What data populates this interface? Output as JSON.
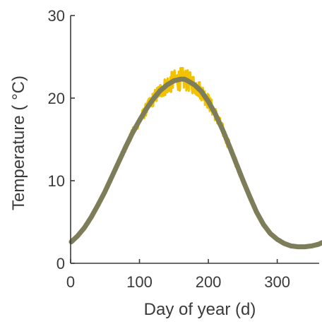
{
  "chart_data": {
    "type": "line",
    "title": "",
    "xlabel": "Day of year (d)",
    "ylabel": "Temperature ( °C)",
    "xlim": [
      0,
      365
    ],
    "ylim": [
      0,
      30
    ],
    "xticks": [
      0,
      100,
      200,
      300
    ],
    "yticks": [
      0,
      10,
      20,
      30
    ],
    "grid": false,
    "legend": "none",
    "series": [
      {
        "style": "noisy-band",
        "color": "#f2c200",
        "x": [
          1,
          10,
          20,
          30,
          40,
          50,
          60,
          70,
          80,
          90,
          100,
          110,
          120,
          130,
          140,
          150,
          160,
          165,
          170,
          180,
          190,
          200,
          210,
          220,
          230,
          240,
          250,
          260,
          270,
          280,
          290,
          300,
          310,
          320,
          330,
          340,
          350,
          360,
          365
        ],
        "y": [
          2.6,
          3.3,
          4.3,
          5.6,
          7.1,
          8.7,
          10.5,
          12.3,
          14.1,
          15.8,
          17.3,
          18.7,
          19.9,
          20.9,
          21.6,
          22.1,
          22.3,
          22.3,
          22.1,
          21.6,
          20.8,
          19.6,
          18.1,
          16.3,
          14.3,
          12.2,
          10.1,
          8.1,
          6.2,
          4.7,
          3.6,
          2.9,
          2.4,
          2.1,
          2.0,
          2.0,
          2.1,
          2.3,
          2.5
        ],
        "noise_amplitude": [
          0.2,
          0.2,
          0.2,
          0.3,
          0.3,
          0.4,
          0.4,
          0.5,
          0.5,
          0.6,
          0.7,
          0.8,
          0.9,
          1.0,
          1.2,
          1.3,
          1.4,
          1.4,
          1.3,
          1.2,
          1.1,
          1.0,
          0.9,
          0.8,
          0.7,
          0.6,
          0.5,
          0.4,
          0.3,
          0.3,
          0.2,
          0.2,
          0.2,
          0.2,
          0.1,
          0.1,
          0.1,
          0.1,
          0.1
        ]
      },
      {
        "style": "smooth-line",
        "color": "#7d7d5a",
        "x": [
          1,
          10,
          20,
          30,
          40,
          50,
          60,
          70,
          80,
          90,
          100,
          110,
          120,
          130,
          140,
          150,
          160,
          165,
          170,
          180,
          190,
          200,
          210,
          220,
          230,
          240,
          250,
          260,
          270,
          280,
          290,
          300,
          310,
          320,
          330,
          340,
          350,
          360,
          365
        ],
        "y": [
          2.6,
          3.3,
          4.3,
          5.6,
          7.1,
          8.7,
          10.5,
          12.3,
          14.1,
          15.8,
          17.3,
          18.7,
          19.9,
          20.9,
          21.6,
          22.1,
          22.3,
          22.3,
          22.1,
          21.6,
          20.8,
          19.6,
          18.1,
          16.3,
          14.3,
          12.2,
          10.1,
          8.1,
          6.2,
          4.7,
          3.6,
          2.9,
          2.4,
          2.1,
          2.0,
          2.0,
          2.1,
          2.3,
          2.5
        ]
      }
    ]
  }
}
